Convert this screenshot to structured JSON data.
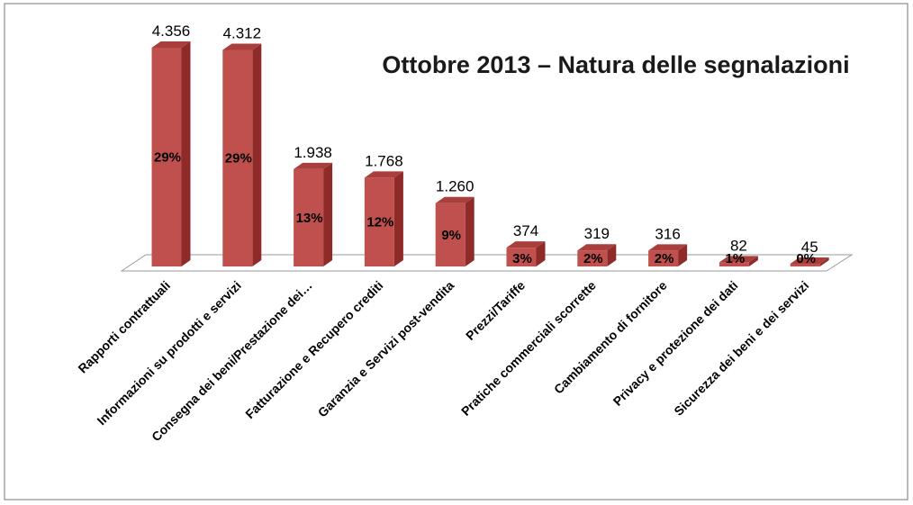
{
  "chart_data": {
    "type": "bar",
    "title": "Ottobre 2013 – Natura delle segnalazioni",
    "categories": [
      "Rapporti contrattuali",
      "Informazioni su prodotti e servizi",
      "Consegna dei beni/Prestazione dei…",
      "Fatturazione e Recupero crediti",
      "Garanzia e Servizi post-vendita",
      "Prezzi/Tariffe",
      "Pratiche commerciali scorrette",
      "Cambiamento di fornitore",
      "Privacy e protezione dei dati",
      "Sicurezza dei beni e dei servizi"
    ],
    "values": [
      4356,
      4312,
      1938,
      1768,
      1260,
      374,
      319,
      316,
      82,
      45
    ],
    "value_labels": [
      "4.356",
      "4.312",
      "1.938",
      "1.768",
      "1.260",
      "374",
      "319",
      "316",
      "82",
      "45"
    ],
    "percent_labels": [
      "29%",
      "29%",
      "13%",
      "12%",
      "9%",
      "3%",
      "2%",
      "2%",
      "1%",
      "0%"
    ],
    "xlabel": "",
    "ylabel": "",
    "ylim": [
      0,
      4356
    ],
    "grid": false,
    "legend": "none",
    "colors": {
      "bar_front": "#c0504d",
      "bar_side": "#8e2b29",
      "bar_top": "#a83f3c"
    }
  }
}
